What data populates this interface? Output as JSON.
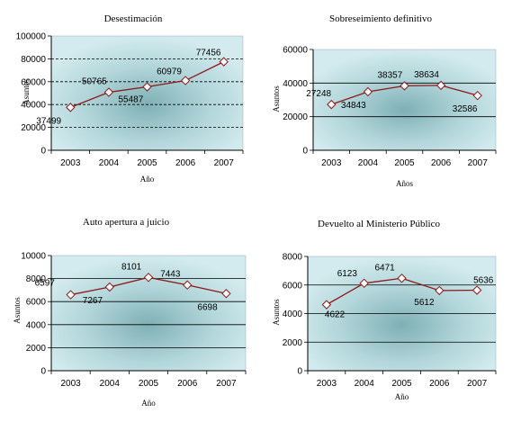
{
  "chart_data": [
    {
      "type": "line",
      "title": "Desestimación",
      "xlabel": "Año",
      "ylabel": "Asuntos",
      "categories": [
        "2003",
        "2004",
        "2005",
        "2006",
        "2007"
      ],
      "values": [
        37499,
        50765,
        55487,
        60979,
        77456
      ],
      "ylim": [
        0,
        100000
      ],
      "yticks": [
        0,
        20000,
        40000,
        60000,
        80000,
        100000
      ],
      "grid": true,
      "line_color": "#8b1a1a",
      "plot_bg": "#c6e3e6"
    },
    {
      "type": "line",
      "title": "Sobreseimiento definitivo",
      "xlabel": "Años",
      "ylabel": "Asuntos",
      "categories": [
        "2003",
        "2004",
        "2005",
        "2006",
        "2007"
      ],
      "values": [
        27248,
        34843,
        38357,
        38634,
        32586
      ],
      "ylim": [
        0,
        60000
      ],
      "yticks": [
        0,
        20000,
        40000,
        60000
      ],
      "grid": true,
      "line_color": "#8b1a1a",
      "plot_bg": "#c6e3e6"
    },
    {
      "type": "line",
      "title": "Auto apertura a juicio",
      "xlabel": "Año",
      "ylabel": "Asuntos",
      "categories": [
        "2003",
        "2004",
        "2005",
        "2006",
        "2007"
      ],
      "values": [
        6597,
        7267,
        8101,
        7443,
        6698
      ],
      "ylim": [
        0,
        10000
      ],
      "yticks": [
        0,
        2000,
        4000,
        6000,
        8000,
        10000
      ],
      "grid": true,
      "line_color": "#8b1a1a",
      "plot_bg": "#c6e3e6"
    },
    {
      "type": "line",
      "title": "Devuelto al Ministerio Público",
      "xlabel": "Año",
      "ylabel": "Asuntos",
      "categories": [
        "2003",
        "2004",
        "2005",
        "2006",
        "2007"
      ],
      "values": [
        4622,
        6123,
        6471,
        5612,
        5636
      ],
      "ylim": [
        0,
        8000
      ],
      "yticks": [
        0,
        2000,
        4000,
        6000,
        8000
      ],
      "grid": true,
      "line_color": "#8b1a1a",
      "plot_bg": "#c6e3e6"
    }
  ]
}
